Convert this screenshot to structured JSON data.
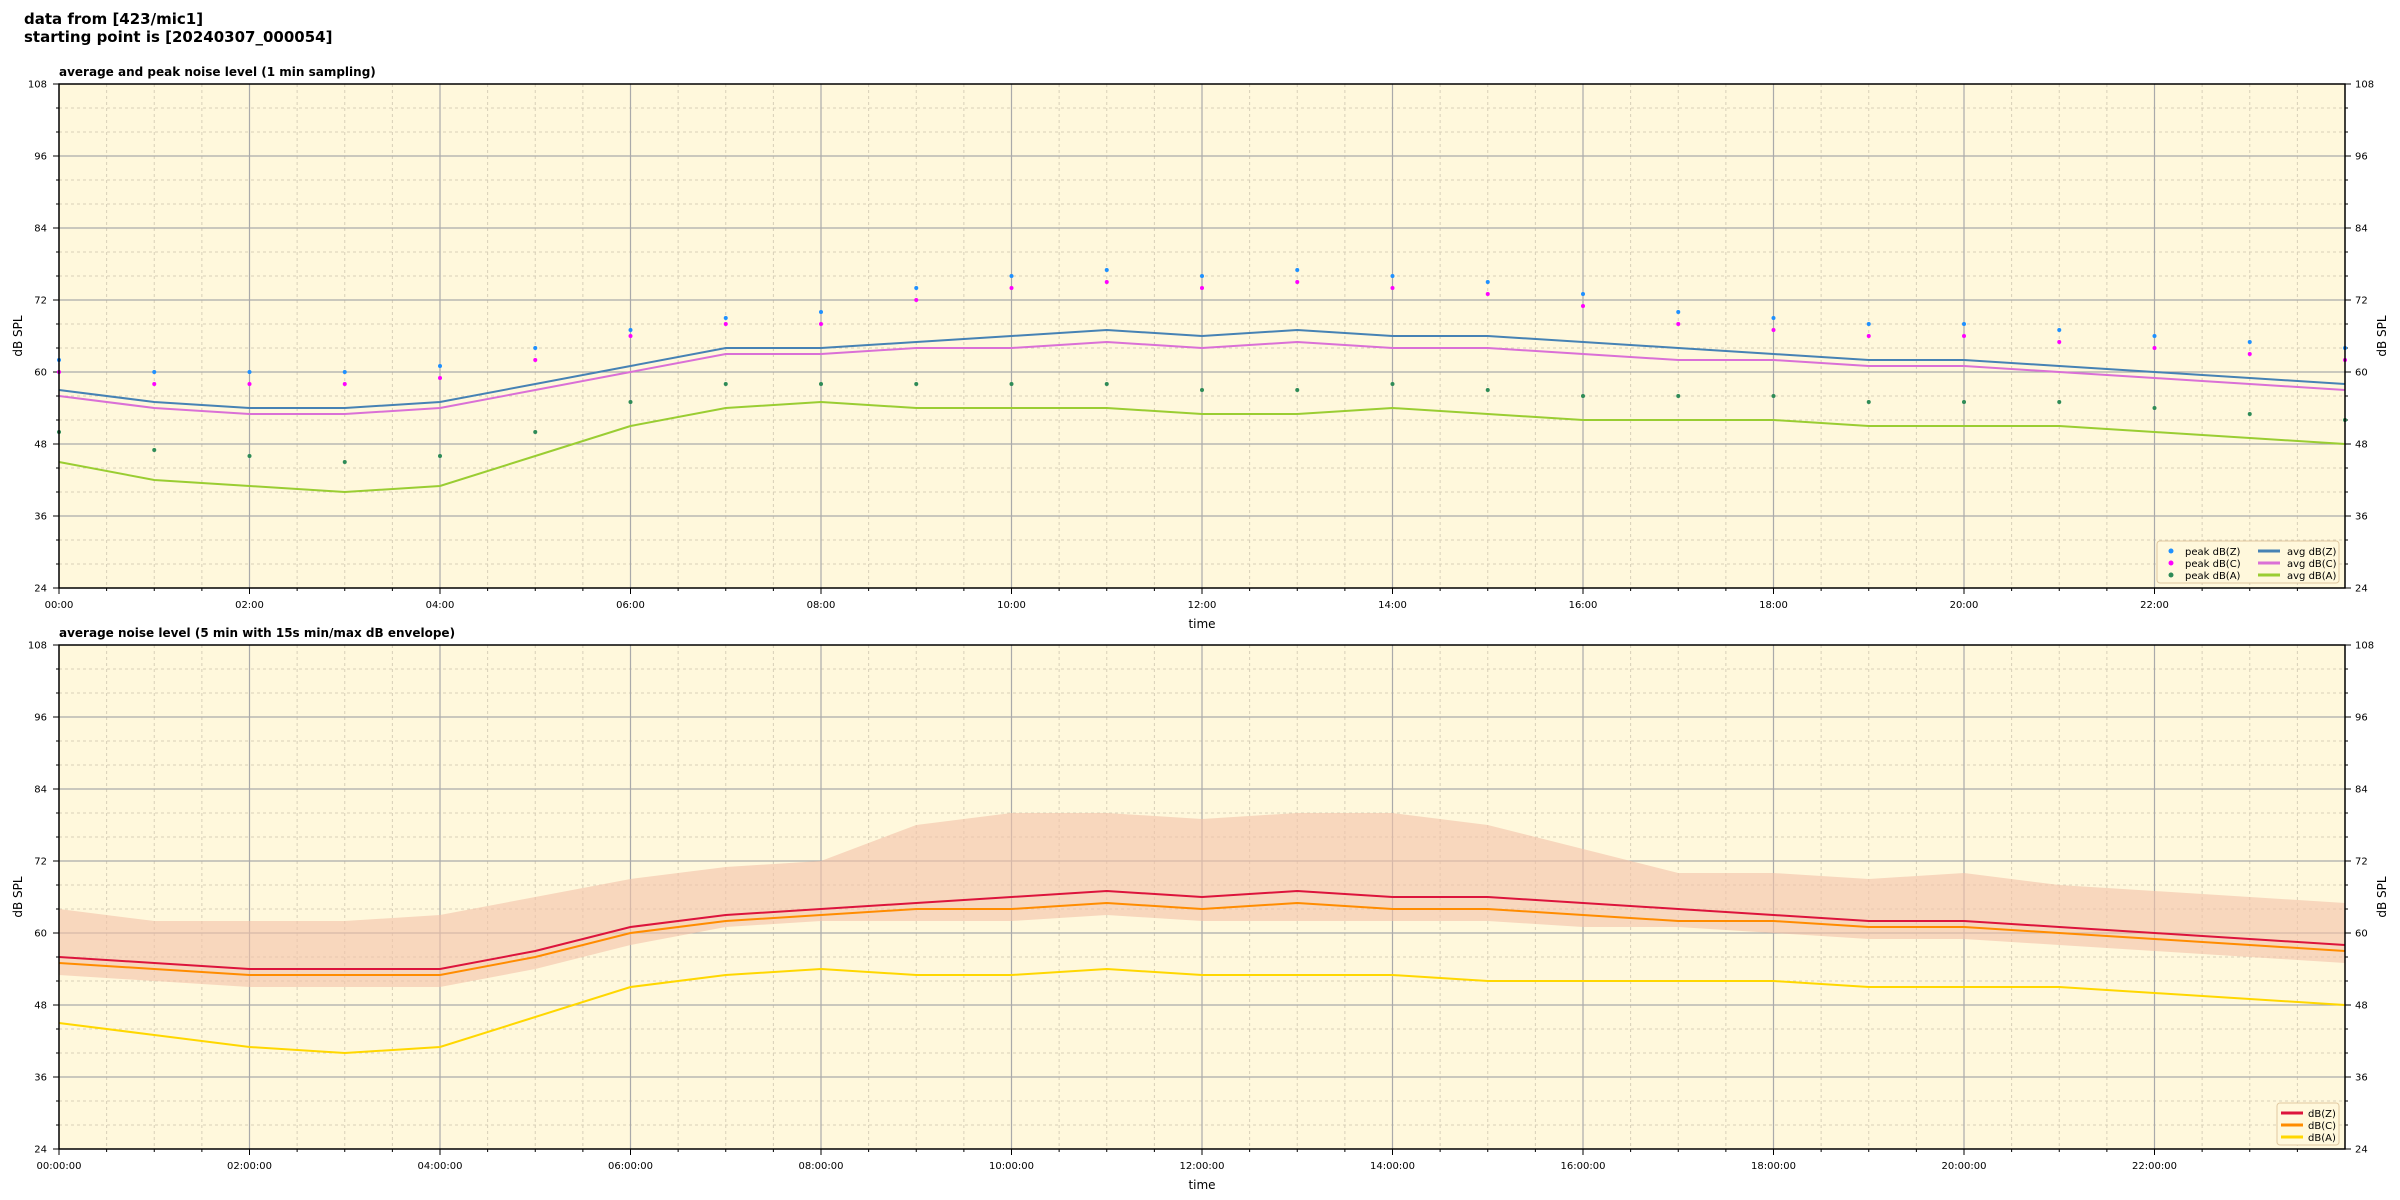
{
  "header": {
    "line1": "data from [423/mic1]",
    "line2": "starting point is [20240307_000054]"
  },
  "colors": {
    "plot_bg": "#fff8dc",
    "peak_z": "#1e90ff",
    "peak_c": "#ff00ff",
    "peak_a": "#2e8b57",
    "avg_z": "#4682b4",
    "avg_c": "#da70d6",
    "avg_a": "#9acd32",
    "z": "#dc143c",
    "c": "#ff8c00",
    "a": "#ffd700",
    "envelope": "#f4c2a8"
  },
  "chart_data": [
    {
      "type": "line",
      "title": "average and peak noise level (1 min sampling)",
      "xlabel": "time",
      "ylabel": "dB SPL",
      "ylim": [
        24,
        108
      ],
      "yticks": [
        24,
        36,
        48,
        60,
        72,
        84,
        96,
        108
      ],
      "xlim_hours": [
        0,
        24
      ],
      "xticks": [
        "00:00",
        "02:00",
        "04:00",
        "06:00",
        "08:00",
        "10:00",
        "12:00",
        "14:00",
        "16:00",
        "18:00",
        "20:00",
        "22:00"
      ],
      "grid": true,
      "legend_placement": "lower-right",
      "x_hours": [
        0,
        1,
        2,
        3,
        4,
        5,
        6,
        7,
        8,
        9,
        10,
        11,
        12,
        13,
        14,
        15,
        16,
        17,
        18,
        19,
        20,
        21,
        22,
        23,
        24
      ],
      "series": [
        {
          "name": "peak dB(Z)",
          "style": "scatter",
          "color_key": "peak_z",
          "values": [
            62,
            60,
            60,
            60,
            61,
            64,
            67,
            69,
            70,
            74,
            76,
            77,
            76,
            77,
            76,
            75,
            73,
            70,
            69,
            68,
            68,
            67,
            66,
            65,
            64
          ]
        },
        {
          "name": "peak dB(C)",
          "style": "scatter",
          "color_key": "peak_c",
          "values": [
            60,
            58,
            58,
            58,
            59,
            62,
            66,
            68,
            68,
            72,
            74,
            75,
            74,
            75,
            74,
            73,
            71,
            68,
            67,
            66,
            66,
            65,
            64,
            63,
            62
          ]
        },
        {
          "name": "peak dB(A)",
          "style": "scatter",
          "color_key": "peak_a",
          "values": [
            50,
            47,
            46,
            45,
            46,
            50,
            55,
            58,
            58,
            58,
            58,
            58,
            57,
            57,
            58,
            57,
            56,
            56,
            56,
            55,
            55,
            55,
            54,
            53,
            52
          ]
        },
        {
          "name": "avg dB(Z)",
          "style": "line",
          "color_key": "avg_z",
          "values": [
            57,
            55,
            54,
            54,
            55,
            58,
            61,
            64,
            64,
            65,
            66,
            67,
            66,
            67,
            66,
            66,
            65,
            64,
            63,
            62,
            62,
            61,
            60,
            59,
            58
          ]
        },
        {
          "name": "avg dB(C)",
          "style": "line",
          "color_key": "avg_c",
          "values": [
            56,
            54,
            53,
            53,
            54,
            57,
            60,
            63,
            63,
            64,
            64,
            65,
            64,
            65,
            64,
            64,
            63,
            62,
            62,
            61,
            61,
            60,
            59,
            58,
            57
          ]
        },
        {
          "name": "avg dB(A)",
          "style": "line",
          "color_key": "avg_a",
          "values": [
            45,
            42,
            41,
            40,
            41,
            46,
            51,
            54,
            55,
            54,
            54,
            54,
            53,
            53,
            54,
            53,
            52,
            52,
            52,
            51,
            51,
            51,
            50,
            49,
            48
          ]
        }
      ]
    },
    {
      "type": "line",
      "title": "average noise level (5 min with 15s min/max dB envelope)",
      "xlabel": "time",
      "ylabel": "dB SPL",
      "ylim": [
        24,
        108
      ],
      "yticks": [
        24,
        36,
        48,
        60,
        72,
        84,
        96,
        108
      ],
      "xlim_hours": [
        0,
        24
      ],
      "xticks": [
        "00:00:00",
        "02:00:00",
        "04:00:00",
        "06:00:00",
        "08:00:00",
        "10:00:00",
        "12:00:00",
        "14:00:00",
        "16:00:00",
        "18:00:00",
        "20:00:00",
        "22:00:00"
      ],
      "grid": true,
      "legend_placement": "lower-right",
      "x_hours": [
        0,
        1,
        2,
        3,
        4,
        5,
        6,
        7,
        8,
        9,
        10,
        11,
        12,
        13,
        14,
        15,
        16,
        17,
        18,
        19,
        20,
        21,
        22,
        23,
        24
      ],
      "envelope": {
        "min": [
          53,
          52,
          51,
          51,
          51,
          54,
          58,
          61,
          62,
          62,
          62,
          63,
          62,
          62,
          62,
          62,
          61,
          61,
          60,
          59,
          59,
          58,
          57,
          56,
          55
        ],
        "max": [
          64,
          62,
          62,
          62,
          63,
          66,
          69,
          71,
          72,
          78,
          80,
          80,
          79,
          80,
          80,
          78,
          74,
          70,
          70,
          69,
          70,
          68,
          67,
          66,
          65
        ]
      },
      "series": [
        {
          "name": "dB(Z)",
          "color_key": "z",
          "values": [
            56,
            55,
            54,
            54,
            54,
            57,
            61,
            63,
            64,
            65,
            66,
            67,
            66,
            67,
            66,
            66,
            65,
            64,
            63,
            62,
            62,
            61,
            60,
            59,
            58
          ]
        },
        {
          "name": "dB(C)",
          "color_key": "c",
          "values": [
            55,
            54,
            53,
            53,
            53,
            56,
            60,
            62,
            63,
            64,
            64,
            65,
            64,
            65,
            64,
            64,
            63,
            62,
            62,
            61,
            61,
            60,
            59,
            58,
            57
          ]
        },
        {
          "name": "dB(A)",
          "color_key": "a",
          "values": [
            45,
            43,
            41,
            40,
            41,
            46,
            51,
            53,
            54,
            53,
            53,
            54,
            53,
            53,
            53,
            52,
            52,
            52,
            52,
            51,
            51,
            51,
            50,
            49,
            48
          ]
        }
      ]
    }
  ]
}
